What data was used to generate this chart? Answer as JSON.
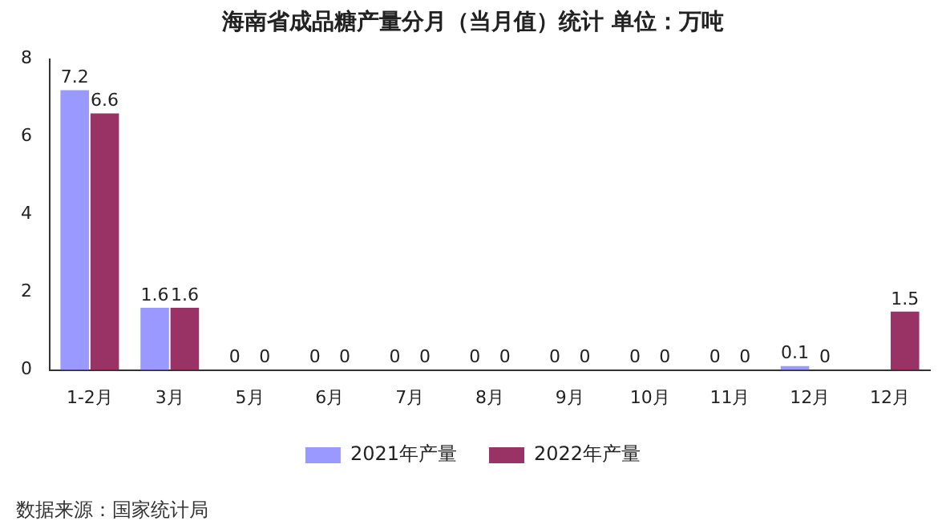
{
  "chart_data": {
    "type": "bar",
    "title": "海南省成品糖产量分月（当月值）统计 单位：万吨",
    "categories": [
      "1-2月",
      "3月",
      "5月",
      "6月",
      "7月",
      "8月",
      "9月",
      "10月",
      "11月",
      "12月",
      "12月"
    ],
    "series": [
      {
        "name": "2021年产量",
        "color": "#9999ff",
        "values": [
          7.2,
          1.6,
          0,
          0,
          0,
          0,
          0,
          0,
          0,
          0.1,
          null
        ]
      },
      {
        "name": "2022年产量",
        "color": "#993366",
        "values": [
          6.6,
          1.6,
          0,
          0,
          0,
          0,
          0,
          0,
          0,
          0,
          1.5
        ]
      }
    ],
    "ylim": [
      0,
      8
    ],
    "yticks": [
      0,
      2,
      4,
      6,
      8
    ],
    "grid": false,
    "legend": "bottom",
    "data_labels": true,
    "annotations": [
      "数据来源：国家统计局"
    ]
  }
}
